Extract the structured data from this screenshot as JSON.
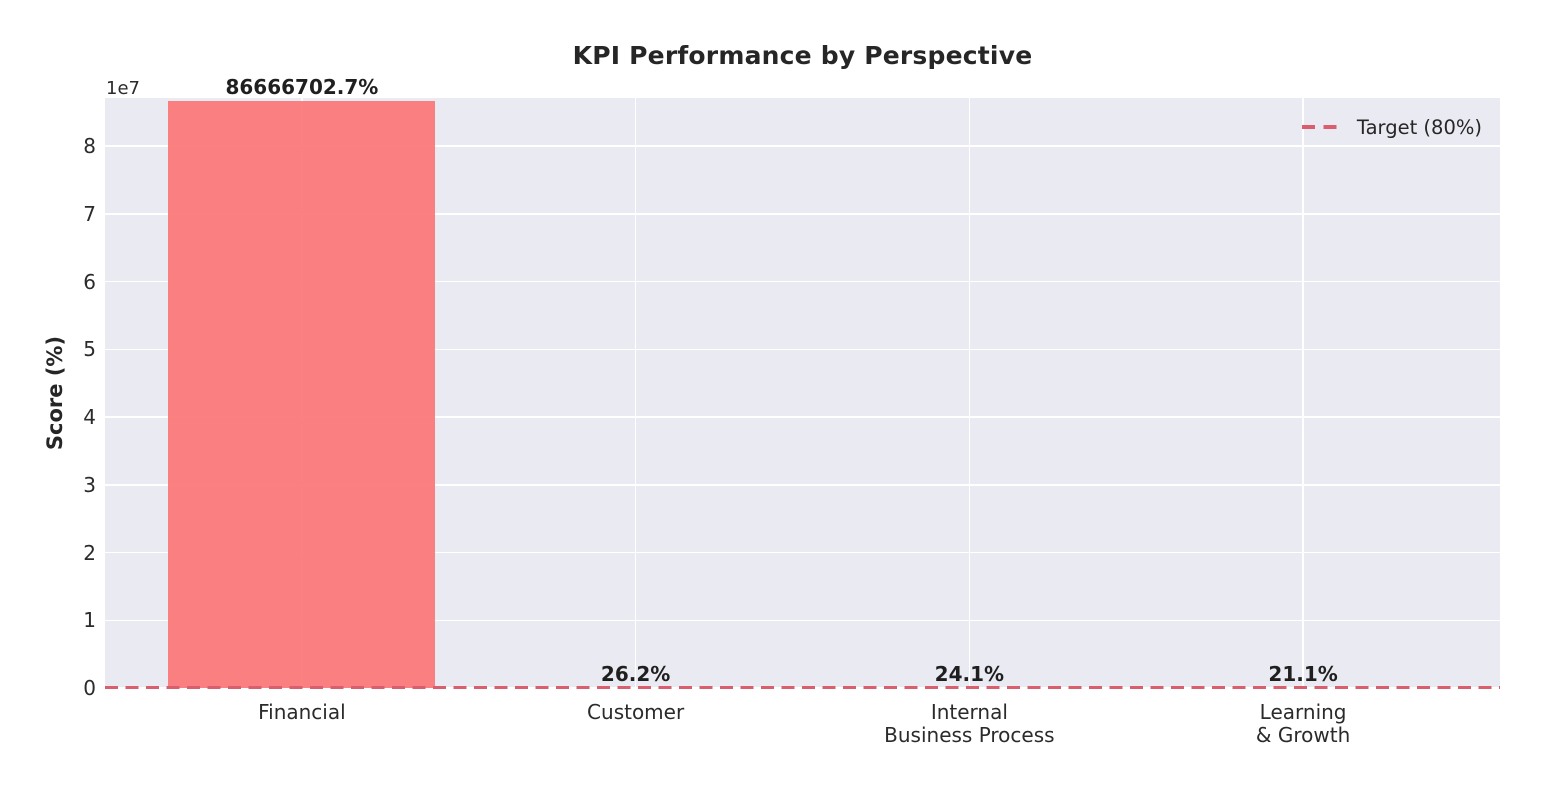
{
  "chart_data": {
    "type": "bar",
    "title": "KPI Performance by Perspective",
    "ylabel": "Score (%)",
    "xlabel": "",
    "y_offset_text": "1e7",
    "categories": [
      "Financial",
      "Customer",
      "Internal\nBusiness Process",
      "Learning\n& Growth"
    ],
    "values": [
      86666702.7,
      26.2,
      24.1,
      21.1
    ],
    "bar_labels": [
      "86666702.7%",
      "26.2%",
      "24.1%",
      "21.1%"
    ],
    "y_ticks_1e7": [
      0,
      1,
      2,
      3,
      4,
      5,
      6,
      7,
      8
    ],
    "ylim": [
      0,
      87100000
    ],
    "grid": true,
    "legend_position": "upper right",
    "target_line": {
      "value": 80,
      "label": "Target (80%)"
    },
    "colors": {
      "bar": "#FA7070",
      "bar_alpha": 0.88,
      "target_line": "#D95F6E",
      "plot_background": "#EAEAF2",
      "grid_line": "#FFFFFF",
      "figure_background": "#FFFFFF",
      "title_text": "#262626",
      "tick_text": "#2B2B2B",
      "value_label_text": "#1F1F1F"
    }
  }
}
